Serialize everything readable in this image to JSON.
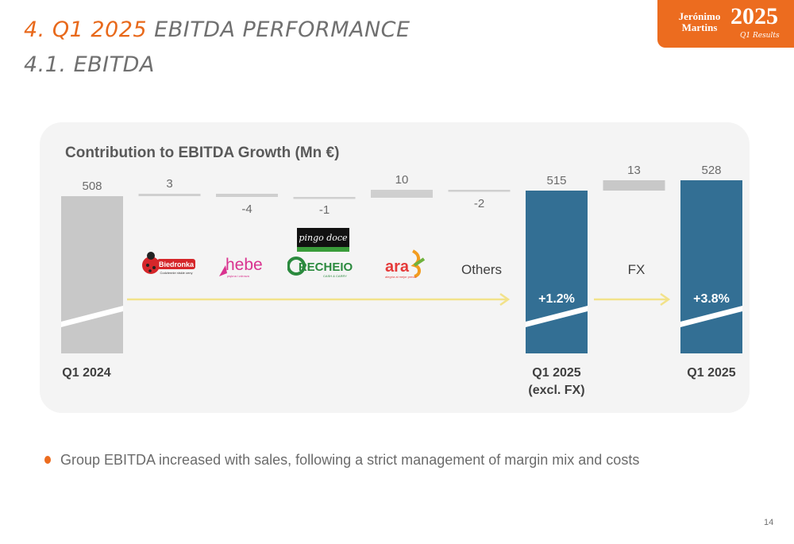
{
  "header": {
    "section_number": "4. Q1 2025",
    "section_title": "EBITDA PERFORMANCE",
    "subsection": "4.1. EBITDA"
  },
  "brand": {
    "name_line1": "Jerónimo",
    "name_line2": "Martins",
    "year": "2025",
    "period": "Q1 Results"
  },
  "colors": {
    "accent": "#ec6c1f",
    "total_gray": "#c8c8c8",
    "total_blue": "#336f94",
    "arrow": "#f2e28a"
  },
  "chart_data": {
    "type": "waterfall",
    "title": "Contribution to EBITDA Growth (Mn €)",
    "unit": "Mn €",
    "categories": [
      "Q1 2024",
      "Biedronka",
      "Hebe",
      "Pingo Doce / Recheio",
      "Ara",
      "Others",
      "Q1 2025\n(excl. FX)",
      "FX",
      "Q1 2025"
    ],
    "values": [
      508,
      3,
      -4,
      -1,
      10,
      -2,
      515,
      13,
      528
    ],
    "value_labels": [
      "508",
      "3",
      "-4",
      "-1",
      "10",
      "-2",
      "515",
      "13",
      "528"
    ],
    "bar_kinds": [
      "total",
      "delta",
      "delta",
      "delta",
      "delta",
      "delta",
      "total",
      "delta",
      "total"
    ],
    "bottom_labels": [
      "Q1 2024",
      "",
      "",
      "",
      "",
      "",
      "Q1 2025\n(excl. FX)",
      "",
      "Q1 2025"
    ],
    "text_category_labels": [
      "",
      "",
      "",
      "",
      "",
      "Others",
      "",
      "FX",
      ""
    ],
    "growth_annotations": [
      {
        "at": "Q1 2025\n(excl. FX)",
        "label": "+1.2%"
      },
      {
        "at": "Q1 2025",
        "label": "+3.8%"
      }
    ]
  },
  "logos": {
    "biedronka": "Biedronka",
    "biedronka_tag": "Codziennie niskie ceny",
    "hebe": "hebe",
    "hebe_tag": "piękna i zdrowa",
    "pingo_doce": "pingo doce",
    "recheio": "RECHEIO",
    "recheio_tag": "CASH & CARRY",
    "ara": "ara",
    "ara_tag": "alegría al mejor precio"
  },
  "bullets": [
    "Group EBITDA increased with sales, following a strict management of margin mix and costs"
  ],
  "page_number": "14"
}
